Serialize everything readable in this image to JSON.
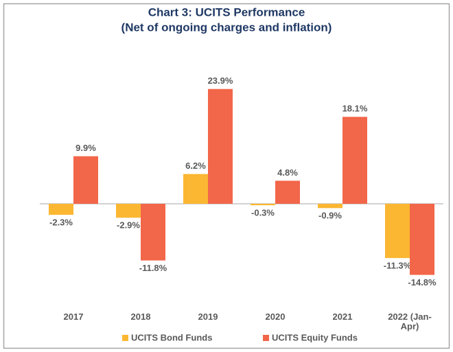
{
  "chart_data": {
    "type": "bar",
    "title": "Chart 3: UCITS Performance",
    "subtitle": "(Net of ongoing charges and inflation)",
    "categories": [
      "2017",
      "2018",
      "2019",
      "2020",
      "2021",
      "2022 (Jan-Apr)"
    ],
    "series": [
      {
        "name": "UCITS Bond Funds",
        "color": "#fbb732",
        "values": [
          -2.3,
          -2.9,
          6.2,
          -0.3,
          -0.9,
          -11.3
        ],
        "value_labels": [
          "-2.3%",
          "-2.9%",
          "6.2%",
          "-0.3%",
          "-0.9%",
          "-11.3%"
        ]
      },
      {
        "name": "UCITS Equity Funds",
        "color": "#f26649",
        "values": [
          9.9,
          -11.8,
          23.9,
          4.8,
          18.1,
          -14.8
        ],
        "value_labels": [
          "9.9%",
          "-11.8%",
          "23.9%",
          "4.8%",
          "18.1%",
          "-14.8%"
        ]
      }
    ],
    "ylim": [
      -20,
      30
    ]
  }
}
